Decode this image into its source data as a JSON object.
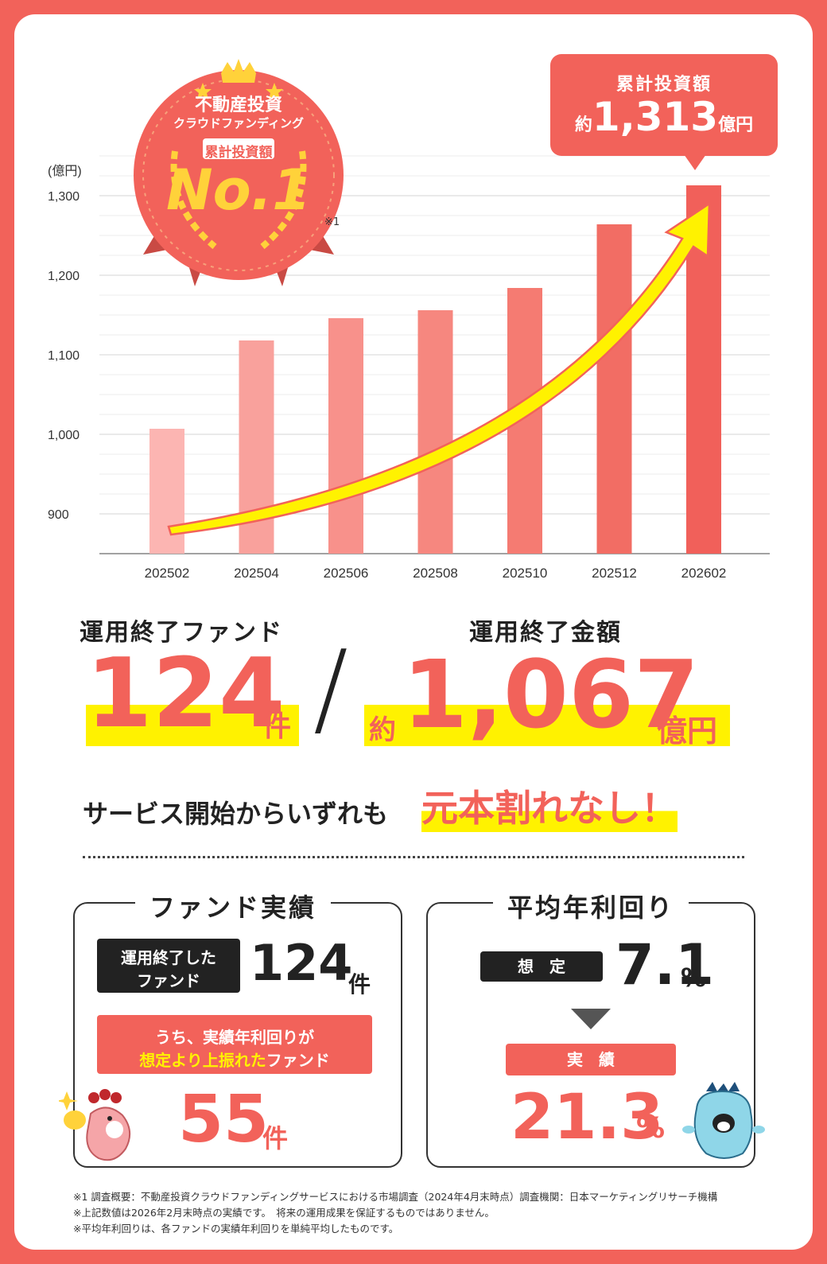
{
  "badge": {
    "line1": "不動産投資",
    "line2": "クラウドファンディング",
    "line3": "累計投資額",
    "rank": "No.1",
    "footnote_mark": "※1"
  },
  "callout": {
    "title": "累計投資額",
    "prefix": "約",
    "value": "1,313",
    "unit": "億円"
  },
  "chart_data": {
    "type": "bar",
    "ylabel": "(億円)",
    "ylim": [
      850,
      1350
    ],
    "yticks": [
      "900",
      "1,000",
      "1,100",
      "1,200",
      "1,300"
    ],
    "ytick_values": [
      900,
      1000,
      1100,
      1200,
      1300
    ],
    "categories": [
      "202502",
      "202504",
      "202506",
      "202508",
      "202510",
      "202512",
      "202602"
    ],
    "values": [
      1007,
      1118,
      1146,
      1156,
      1184,
      1264,
      1313
    ],
    "bar_colors": [
      "#fcb5b2",
      "#f9a19c",
      "#f8918b",
      "#f6877f",
      "#f57b72",
      "#f26d64",
      "#f1605a"
    ],
    "grid": true,
    "arrow_color": "#fff200"
  },
  "stats": {
    "funds_label": "運用終了ファンド",
    "funds_value": "124",
    "funds_unit": "件",
    "separator": "/",
    "amount_label": "運用終了金額",
    "amount_prefix": "約",
    "amount_value": "1,067",
    "amount_unit": "億円",
    "tagline_a": "サービス開始からいずれも",
    "tagline_b": "元本割れなし！"
  },
  "fund_box": {
    "title": "ファンド実績",
    "ended_label_1": "運用終了した",
    "ended_label_2": "ファンド",
    "ended_value": "124",
    "ended_unit": "件",
    "sub_line1": "うち、実績年利回りが",
    "sub_line2a": "想定より上振れた",
    "sub_line2b": "ファンド",
    "sub_value": "55",
    "sub_unit": "件"
  },
  "yield_box": {
    "title": "平均年利回り",
    "expected_label": "想　定",
    "expected_value": "7.1",
    "expected_unit": "%",
    "actual_label": "実　績",
    "actual_value": "21.3",
    "actual_unit": "%"
  },
  "notes": [
    "※1 調査概要：不動産投資クラウドファンディングサービスにおける市場調査（2024年4月末時点）調査機関：日本マーケティングリサーチ機構",
    "※上記数値は2026年2月末時点の実績です。　将来の運用成果を保証するものではありません。",
    "※平均年利回りは、各ファンドの実績年利回りを単純平均したものです。"
  ]
}
